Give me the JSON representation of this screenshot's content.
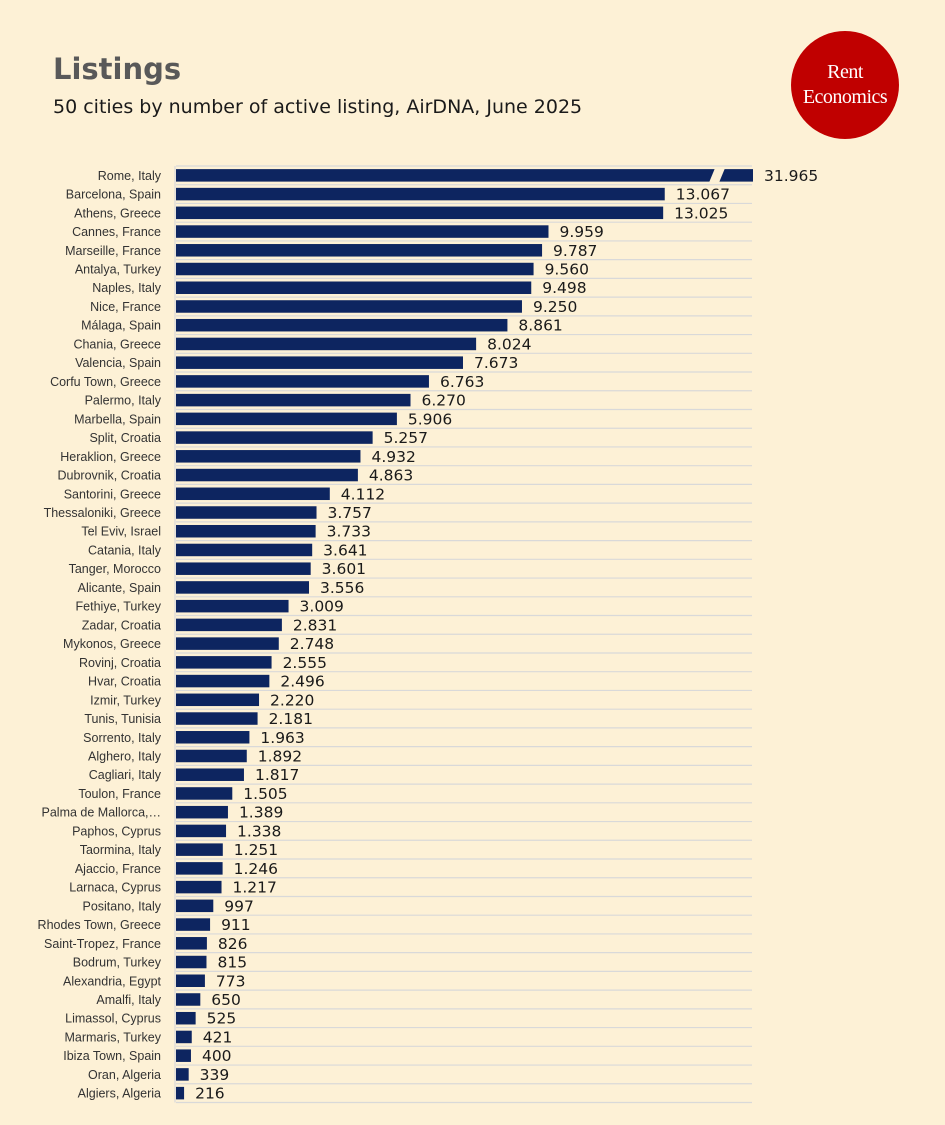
{
  "header": {
    "title": "Listings",
    "subtitle": "50 cities by number of active listing, AirDNA, June 2025"
  },
  "logo": {
    "line1": "Rent",
    "line2": "Economics"
  },
  "colors": {
    "bar": "#0d2560",
    "background": "#fdf1d6",
    "logo": "#c00000",
    "grid": "#d9d9d9"
  },
  "chart_data": {
    "type": "bar",
    "orientation": "horizontal",
    "broken_axis_category": "Rome, Italy",
    "title": "Listings",
    "subtitle": "50 cities by number of active listing, AirDNA, June 2025",
    "categories": [
      "Rome, Italy",
      "Barcelona, Spain",
      "Athens, Greece",
      "Cannes, France",
      "Marseille, France",
      "Antalya, Turkey",
      "Naples, Italy",
      "Nice, France",
      "Málaga, Spain",
      "Chania, Greece",
      "Valencia, Spain",
      "Corfu Town, Greece",
      "Palermo, Italy",
      "Marbella, Spain",
      "Split, Croatia",
      "Heraklion, Greece",
      "Dubrovnik, Croatia",
      "Santorini, Greece",
      "Thessaloniki, Greece",
      "Tel Eviv, Israel",
      "Catania, Italy",
      "Tanger, Morocco",
      "Alicante, Spain",
      "Fethiye, Turkey",
      "Zadar, Croatia",
      "Mykonos, Greece",
      "Rovinj, Croatia",
      "Hvar, Croatia",
      "Izmir, Turkey",
      "Tunis, Tunisia",
      "Sorrento, Italy",
      "Alghero, Italy",
      "Cagliari, Italy",
      "Toulon, France",
      "Palma de Mallorca,…",
      "Paphos, Cyprus",
      "Taormina, Italy",
      "Ajaccio, France",
      "Larnaca, Cyprus",
      "Positano, Italy",
      "Rhodes Town, Greece",
      "Saint-Tropez, France",
      "Bodrum, Turkey",
      "Alexandria, Egypt",
      "Amalfi, Italy",
      "Limassol, Cyprus",
      "Marmaris, Turkey",
      "Ibiza Town, Spain",
      "Oran, Algeria",
      "Algiers, Algeria"
    ],
    "values": [
      31965,
      13067,
      13025,
      9959,
      9787,
      9560,
      9498,
      9250,
      8861,
      8024,
      7673,
      6763,
      6270,
      5906,
      5257,
      4932,
      4863,
      4112,
      3757,
      3733,
      3641,
      3601,
      3556,
      3009,
      2831,
      2748,
      2555,
      2496,
      2220,
      2181,
      1963,
      1892,
      1817,
      1505,
      1389,
      1338,
      1251,
      1246,
      1217,
      997,
      911,
      826,
      815,
      773,
      650,
      525,
      421,
      400,
      339,
      216
    ],
    "value_labels": [
      "31.965",
      "13.067",
      "13.025",
      "9.959",
      "9.787",
      "9.560",
      "9.498",
      "9.250",
      "8.861",
      "8.024",
      "7.673",
      "6.763",
      "6.270",
      "5.906",
      "5.257",
      "4.932",
      "4.863",
      "4.112",
      "3.757",
      "3.733",
      "3.641",
      "3.601",
      "3.556",
      "3.009",
      "2.831",
      "2.748",
      "2.555",
      "2.496",
      "2.220",
      "2.181",
      "1.963",
      "1.892",
      "1.817",
      "1.505",
      "1.389",
      "1.338",
      "1.251",
      "1.246",
      "1.217",
      "997",
      "911",
      "826",
      "815",
      "773",
      "650",
      "525",
      "421",
      "400",
      "339",
      "216"
    ],
    "xlim": [
      0,
      15400
    ],
    "grid": true
  }
}
